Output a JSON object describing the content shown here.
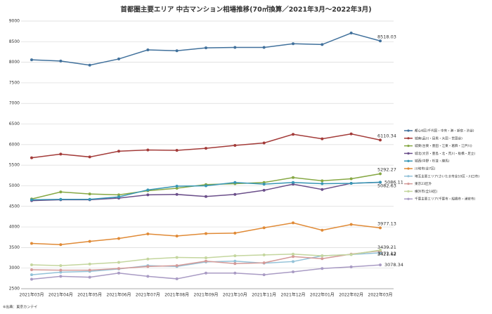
{
  "chart_data": {
    "type": "line",
    "title": "首都圏主要エリア 中古マンション相場推移(70㎡換算／2021年3月～2022年3月)",
    "note": "※出典：東京カンテイ",
    "categories": [
      "2021年03月",
      "2021年04月",
      "2021年05月",
      "2021年06月",
      "2021年07月",
      "2021年08月",
      "2021年09月",
      "2021年10月",
      "2021年11月",
      "2021年12月",
      "2022年01月",
      "2022年02月",
      "2022年03月"
    ],
    "ylim": [
      2500,
      9000
    ],
    "yticks": [
      2500,
      3000,
      3500,
      4000,
      4500,
      5000,
      5500,
      6000,
      6500,
      7000,
      7500,
      8000,
      8500,
      9000
    ],
    "grid": true,
    "series": [
      {
        "name": "都心6区(千代田・中央・港・新宿・渋谷)",
        "color": "#41719c",
        "values": [
          8060,
          8030,
          7930,
          8080,
          8300,
          8280,
          8350,
          8360,
          8360,
          8450,
          8430,
          8710,
          8518.03
        ]
      },
      {
        "name": "城南(品川・目黒・大田・世田谷)",
        "color": "#a33b39",
        "values": [
          5680,
          5770,
          5700,
          5840,
          5870,
          5860,
          5910,
          5980,
          6040,
          6250,
          6140,
          6260,
          6110.34
        ]
      },
      {
        "name": "城東(台東・墨田・江東・葛飾・江戸川)",
        "color": "#86a844",
        "values": [
          4680,
          4850,
          4800,
          4780,
          4880,
          4940,
          5030,
          5050,
          5080,
          5200,
          5120,
          5170,
          5292.27
        ]
      },
      {
        "name": "城北(文京・豊島・北・荒川・板橋・足立)",
        "color": "#6b4f8a",
        "values": [
          4640,
          4660,
          4660,
          4700,
          4780,
          4790,
          4740,
          4790,
          4890,
          5040,
          4910,
          5060,
          5082.63
        ]
      },
      {
        "name": "城西(中野・杉並・練馬)",
        "color": "#3796b4",
        "values": [
          4660,
          4670,
          4670,
          4730,
          4900,
          4990,
          5000,
          5080,
          5040,
          5080,
          5050,
          5060,
          5086.11
        ]
      },
      {
        "name": "川崎市(全7区)",
        "color": "#e08a36",
        "values": [
          3600,
          3570,
          3650,
          3720,
          3830,
          3780,
          3840,
          3850,
          3980,
          4100,
          3920,
          4060,
          3977.13
        ]
      },
      {
        "name": "埼玉主要エリア(さいたま市全10区・川口市)",
        "color": "#93c2d8",
        "values": [
          2840,
          2900,
          2920,
          2980,
          3060,
          3040,
          3150,
          3170,
          3120,
          3160,
          3300,
          3330,
          3373.12
        ]
      },
      {
        "name": "東京23区外",
        "color": "#d49a98",
        "values": [
          2960,
          2950,
          2950,
          2990,
          3040,
          3060,
          3170,
          3110,
          3130,
          3280,
          3230,
          3340,
          3421.62
        ]
      },
      {
        "name": "横浜市(全18区)",
        "color": "#c4d69e",
        "values": [
          3080,
          3060,
          3100,
          3140,
          3220,
          3260,
          3250,
          3300,
          3320,
          3340,
          3300,
          3330,
          3439.21
        ]
      },
      {
        "name": "千葉主要エリア(千葉市・船橋市・浦安市)",
        "color": "#a99bc4",
        "values": [
          2730,
          2800,
          2780,
          2880,
          2800,
          2740,
          2880,
          2880,
          2840,
          2910,
          2990,
          3030,
          3078.34
        ]
      }
    ]
  }
}
